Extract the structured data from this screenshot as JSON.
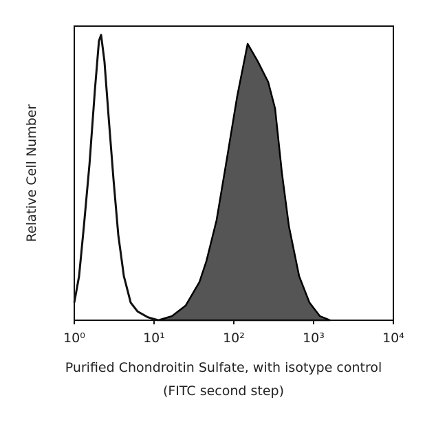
{
  "chart_data": {
    "type": "histogram-overlay",
    "xlabel": [
      "Purified Chondroitin Sulfate, with isotype control",
      "(FITC second step)"
    ],
    "ylabel": "Relative Cell Number",
    "log_x": true,
    "xlim": [
      1,
      10000
    ],
    "ylim": [
      0,
      100
    ],
    "xticks": [
      {
        "value": 1,
        "label": "10⁰"
      },
      {
        "value": 10,
        "label": "10¹"
      },
      {
        "value": 100,
        "label": "10²"
      },
      {
        "value": 1000,
        "label": "10³"
      },
      {
        "value": 10000,
        "label": "10⁴"
      }
    ],
    "series": [
      {
        "color": "#111111",
        "filled": false,
        "x": [
          1.0,
          1.15,
          1.32,
          1.55,
          1.81,
          2.04,
          2.17,
          2.39,
          2.7,
          3.1,
          3.56,
          4.18,
          5.09,
          6.21,
          8.36,
          11.3
        ],
        "values": [
          6,
          15,
          32,
          53,
          78,
          95,
          97,
          88,
          69,
          48,
          29,
          15,
          6,
          3,
          1,
          0
        ]
      },
      {
        "color": "#555555",
        "filled": true,
        "x": [
          11.3,
          16.8,
          24.9,
          37.1,
          45.2,
          60.8,
          82,
          110,
          149,
          200,
          270,
          329,
          401,
          490,
          659,
          888,
          1197,
          1610
        ],
        "values": [
          0,
          1.4,
          5,
          13,
          20,
          34,
          55,
          76,
          94,
          88,
          81,
          72,
          50,
          32,
          15,
          6,
          1.4,
          0
        ]
      }
    ]
  }
}
